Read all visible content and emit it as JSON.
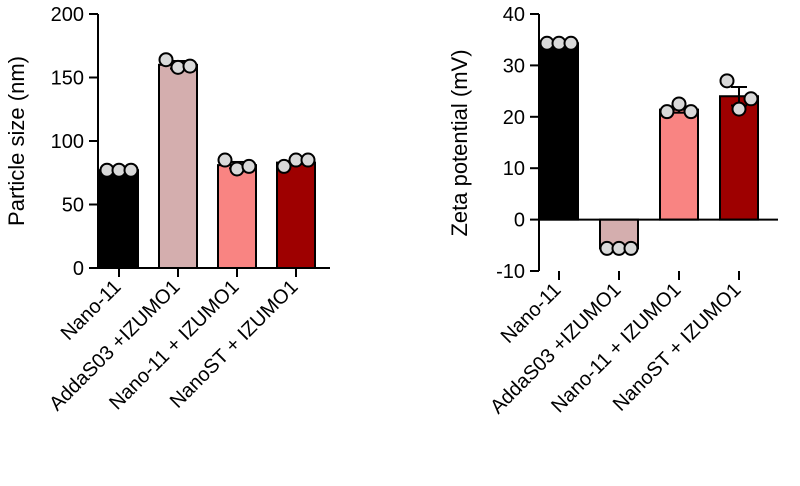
{
  "colors": {
    "black": "#000000",
    "light_pink": "#d4aeae",
    "salmon": "#f98482",
    "dark_red": "#9e0000",
    "point_fill": "#d9d9d9"
  },
  "chart_data": [
    {
      "type": "bar",
      "title": "",
      "xlabel": "",
      "ylabel": "Particle size (nm)",
      "ylim": [
        0,
        200
      ],
      "yticks": [
        0,
        50,
        100,
        150,
        200
      ],
      "ytick_labels": [
        "0",
        "50",
        "100",
        "150",
        "200"
      ],
      "categories": [
        "Nano-11",
        "AddaS03 +IZUMO1",
        "Nano-11 + IZUMO1",
        "NanoST + IZUMO1"
      ],
      "values": [
        77,
        160,
        81,
        83
      ],
      "errors": [
        0.5,
        3,
        2.5,
        1
      ],
      "bar_colors": [
        "#000000",
        "#d4aeae",
        "#f98482",
        "#9e0000"
      ],
      "points": [
        [
          77,
          77,
          77
        ],
        [
          164,
          158,
          159
        ],
        [
          85,
          78,
          80
        ],
        [
          80,
          85,
          85
        ]
      ],
      "grid": false,
      "legend": "none"
    },
    {
      "type": "bar",
      "title": "",
      "xlabel": "",
      "ylabel": "Zeta potential (mV)",
      "ylim": [
        -10,
        40
      ],
      "yticks": [
        -10,
        0,
        10,
        20,
        30,
        40
      ],
      "ytick_labels": [
        "-10",
        "0",
        "10",
        "20",
        "30",
        "40"
      ],
      "categories": [
        "Nano-11",
        "AddaS03 +IZUMO1",
        "Nano-11 + IZUMO1",
        "NanoST + IZUMO1"
      ],
      "values": [
        34.3,
        -5.6,
        21.4,
        24
      ],
      "errors": [
        0.3,
        0.1,
        0.6,
        1.8
      ],
      "bar_colors": [
        "#000000",
        "#d4aeae",
        "#f98482",
        "#9e0000"
      ],
      "points": [
        [
          34.3,
          34.3,
          34.3
        ],
        [
          -5.6,
          -5.6,
          -5.6
        ],
        [
          21,
          22.5,
          21
        ],
        [
          27,
          21.5,
          23.5
        ]
      ],
      "grid": false,
      "legend": "none"
    }
  ]
}
